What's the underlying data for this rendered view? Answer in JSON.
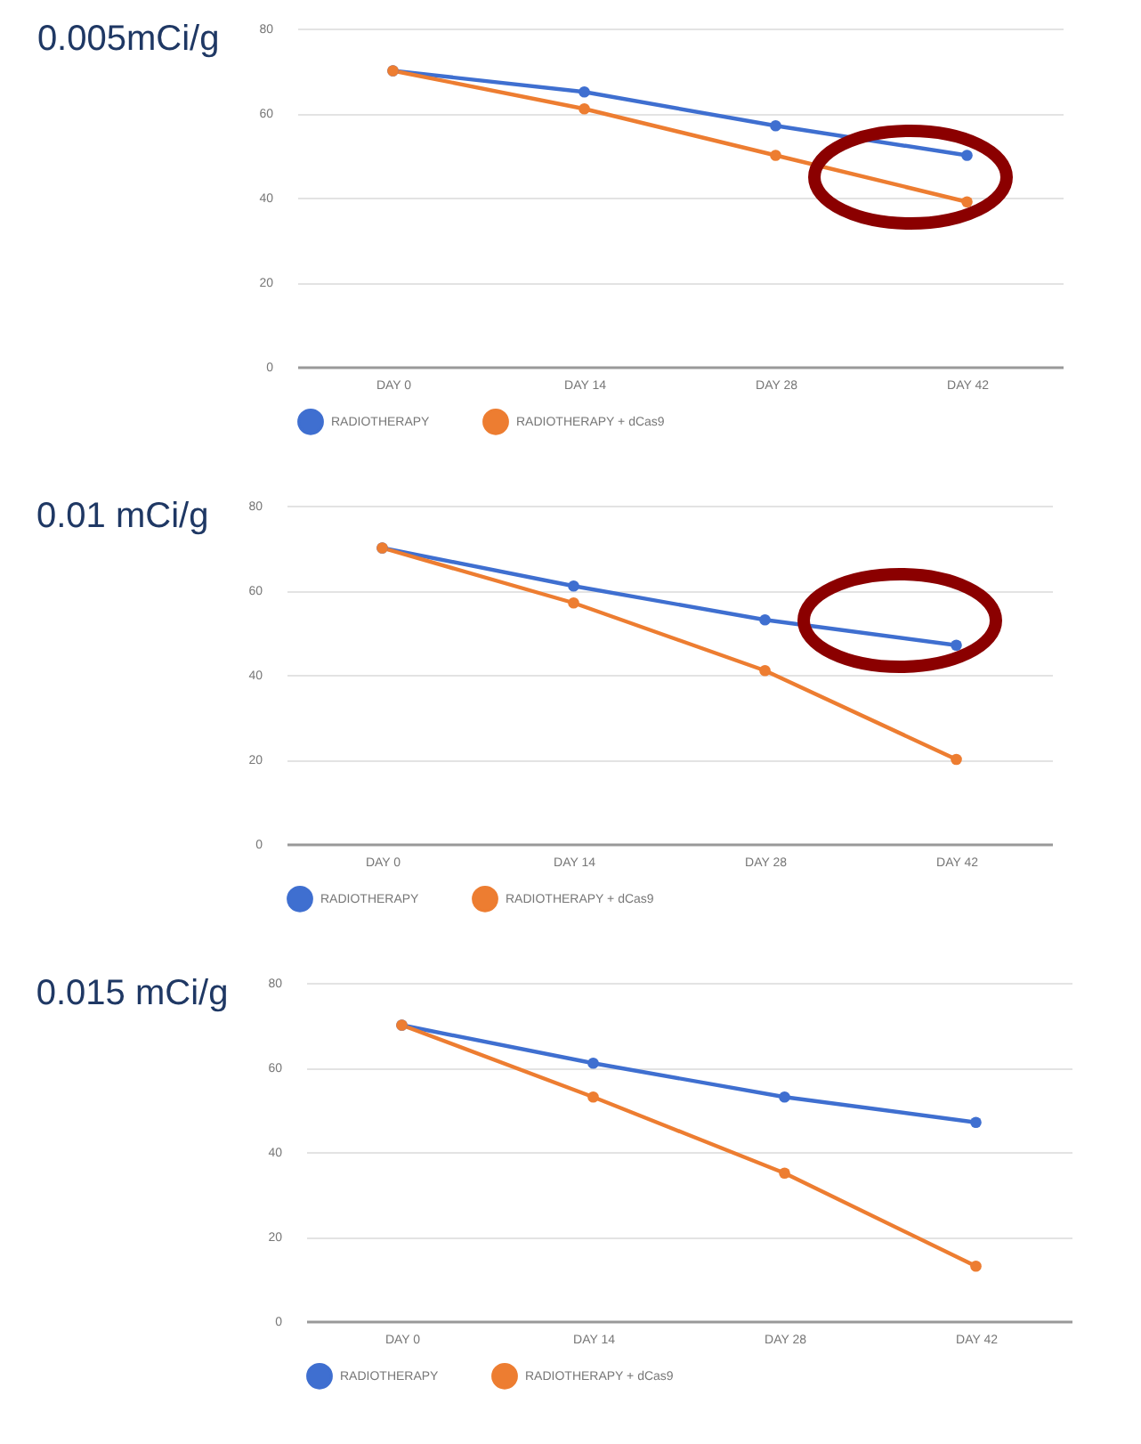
{
  "chart_data": [
    {
      "type": "line",
      "title": "0.005mCi/g",
      "categories": [
        "DAY 0",
        "DAY 14",
        "DAY 28",
        "DAY 42"
      ],
      "series": [
        {
          "name": "RADIOTHERAPY",
          "color": "#3f6fd0",
          "values": [
            70,
            65,
            57,
            50
          ]
        },
        {
          "name": "RADIOTHERAPY + dCas9",
          "color": "#ed7d31",
          "values": [
            70,
            61,
            50,
            39
          ]
        }
      ],
      "ylim": [
        0,
        80
      ],
      "yticks": [
        0,
        20,
        40,
        60,
        80
      ],
      "grid": "y",
      "legend": "bottom",
      "marker": "circle"
    },
    {
      "type": "line",
      "title": "0.01 mCi/g",
      "categories": [
        "DAY 0",
        "DAY 14",
        "DAY 28",
        "DAY 42"
      ],
      "series": [
        {
          "name": "RADIOTHERAPY",
          "color": "#3f6fd0",
          "values": [
            70,
            61,
            53,
            47
          ]
        },
        {
          "name": "RADIOTHERAPY + dCas9",
          "color": "#ed7d31",
          "values": [
            70,
            57,
            41,
            20
          ]
        }
      ],
      "ylim": [
        0,
        80
      ],
      "yticks": [
        0,
        20,
        40,
        60,
        80
      ],
      "grid": "y",
      "legend": "bottom",
      "marker": "circle"
    },
    {
      "type": "line",
      "title": "0.015 mCi/g",
      "categories": [
        "DAY 0",
        "DAY 14",
        "DAY 28",
        "DAY 42"
      ],
      "series": [
        {
          "name": "RADIOTHERAPY",
          "color": "#3f6fd0",
          "values": [
            70,
            61,
            53,
            47
          ]
        },
        {
          "name": "RADIOTHERAPY + dCas9",
          "color": "#ed7d31",
          "values": [
            70,
            53,
            35,
            13
          ]
        }
      ],
      "ylim": [
        0,
        80
      ],
      "yticks": [
        0,
        20,
        40,
        60,
        80
      ],
      "grid": "y",
      "legend": "bottom",
      "marker": "circle"
    }
  ]
}
